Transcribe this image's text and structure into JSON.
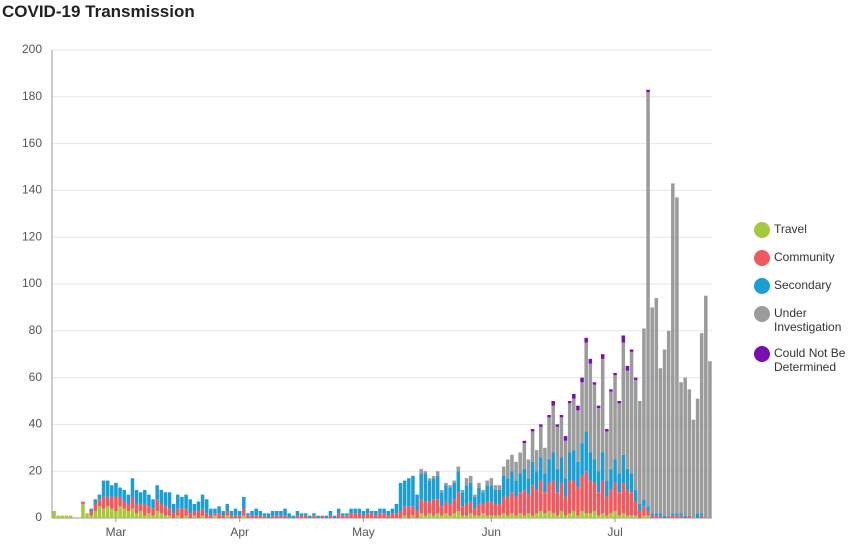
{
  "chart_data": {
    "type": "bar",
    "stacked": true,
    "title": "COVID-19 Transmission",
    "categories": [
      null,
      null,
      null,
      null,
      null,
      null,
      null,
      null,
      null,
      null,
      null,
      null,
      null,
      null,
      null,
      "Mar",
      null,
      null,
      null,
      null,
      null,
      null,
      null,
      null,
      null,
      null,
      null,
      null,
      null,
      null,
      null,
      null,
      null,
      null,
      null,
      null,
      null,
      null,
      null,
      null,
      null,
      null,
      null,
      null,
      null,
      "Apr",
      null,
      null,
      null,
      null,
      null,
      null,
      null,
      null,
      null,
      null,
      null,
      null,
      null,
      null,
      null,
      null,
      null,
      null,
      null,
      null,
      null,
      null,
      null,
      null,
      null,
      null,
      null,
      null,
      null,
      "May",
      null,
      null,
      null,
      null,
      null,
      null,
      null,
      null,
      null,
      null,
      null,
      null,
      null,
      null,
      null,
      null,
      null,
      null,
      null,
      null,
      null,
      null,
      null,
      null,
      null,
      null,
      null,
      null,
      null,
      null,
      "Jun",
      null,
      null,
      null,
      null,
      null,
      null,
      null,
      null,
      null,
      null,
      null,
      null,
      null,
      null,
      null,
      null,
      null,
      null,
      null,
      null,
      null,
      null,
      null,
      null,
      null,
      null,
      null,
      null,
      null,
      "Jul",
      null,
      null,
      null,
      null,
      null,
      null,
      null,
      null,
      null,
      null,
      null,
      null,
      null,
      null,
      null,
      null,
      null,
      null,
      null,
      null,
      null,
      null,
      null
    ],
    "series": [
      {
        "name": "Travel",
        "color": "#a5c93b",
        "values": [
          3,
          1,
          1,
          1,
          1,
          0,
          0,
          6,
          2,
          1,
          3,
          5,
          4,
          5,
          4,
          3,
          5,
          4,
          3,
          4,
          2,
          3,
          1,
          2,
          1,
          3,
          2,
          1,
          1,
          0,
          1,
          0,
          1,
          0,
          1,
          0,
          1,
          0,
          0,
          1,
          0,
          0,
          1,
          0,
          0,
          0,
          1,
          0,
          0,
          0,
          0,
          0,
          0,
          0,
          0,
          0,
          0,
          0,
          0,
          0,
          0,
          0,
          0,
          0,
          0,
          0,
          0,
          0,
          0,
          0,
          0,
          0,
          0,
          0,
          0,
          0,
          0,
          0,
          0,
          0,
          0,
          0,
          0,
          0,
          0,
          1,
          0,
          1,
          0,
          2,
          1,
          2,
          1,
          2,
          1,
          2,
          1,
          2,
          3,
          1,
          1,
          2,
          1,
          1,
          2,
          1,
          1,
          1,
          1,
          2,
          1,
          2,
          1,
          2,
          1,
          2,
          1,
          2,
          3,
          2,
          3,
          2,
          1,
          3,
          1,
          2,
          3,
          1,
          3,
          2,
          2,
          3,
          1,
          2,
          1,
          2,
          3,
          1,
          2,
          1,
          1,
          1,
          0,
          1,
          1,
          0,
          0,
          0,
          0,
          0,
          0,
          0,
          0,
          0,
          0,
          0,
          0,
          0,
          0,
          0
        ]
      },
      {
        "name": "Community",
        "color": "#f05a5e",
        "values": [
          0,
          0,
          0,
          0,
          0,
          0,
          0,
          1,
          0,
          2,
          3,
          3,
          5,
          4,
          5,
          6,
          4,
          3,
          3,
          5,
          4,
          3,
          5,
          3,
          3,
          5,
          4,
          4,
          3,
          2,
          3,
          4,
          3,
          2,
          2,
          3,
          3,
          2,
          1,
          1,
          2,
          1,
          2,
          1,
          1,
          1,
          3,
          1,
          1,
          1,
          1,
          1,
          0,
          1,
          1,
          1,
          1,
          0,
          0,
          1,
          1,
          1,
          0,
          1,
          0,
          1,
          0,
          1,
          0,
          2,
          1,
          1,
          2,
          2,
          2,
          1,
          2,
          2,
          1,
          2,
          2,
          1,
          2,
          2,
          3,
          4,
          5,
          4,
          3,
          6,
          6,
          5,
          7,
          6,
          4,
          5,
          5,
          6,
          8,
          4,
          5,
          5,
          3,
          5,
          4,
          6,
          6,
          5,
          5,
          7,
          8,
          9,
          8,
          9,
          11,
          8,
          13,
          10,
          13,
          9,
          12,
          14,
          10,
          12,
          8,
          14,
          13,
          12,
          15,
          18,
          14,
          12,
          10,
          14,
          8,
          10,
          12,
          10,
          13,
          11,
          10,
          6,
          3,
          4,
          2,
          1,
          1,
          1,
          0,
          1,
          1,
          1,
          1,
          0,
          1,
          0,
          0,
          1,
          0,
          0
        ]
      },
      {
        "name": "Secondary",
        "color": "#1a9fd5",
        "values": [
          0,
          0,
          0,
          0,
          0,
          0,
          0,
          0,
          0,
          1,
          2,
          2,
          7,
          7,
          5,
          6,
          4,
          5,
          4,
          8,
          6,
          5,
          6,
          5,
          4,
          6,
          6,
          6,
          7,
          4,
          6,
          5,
          6,
          6,
          3,
          4,
          6,
          6,
          3,
          2,
          3,
          2,
          3,
          2,
          3,
          2,
          5,
          1,
          2,
          3,
          2,
          1,
          2,
          2,
          2,
          2,
          3,
          2,
          1,
          2,
          1,
          1,
          1,
          1,
          1,
          0,
          1,
          2,
          1,
          2,
          1,
          1,
          2,
          2,
          2,
          2,
          2,
          1,
          2,
          2,
          2,
          2,
          2,
          4,
          12,
          11,
          12,
          13,
          7,
          11,
          12,
          9,
          9,
          10,
          6,
          7,
          7,
          7,
          9,
          6,
          8,
          8,
          5,
          7,
          5,
          7,
          7,
          6,
          6,
          9,
          8,
          9,
          7,
          8,
          9,
          7,
          10,
          8,
          10,
          8,
          10,
          12,
          10,
          11,
          8,
          12,
          13,
          11,
          14,
          17,
          12,
          10,
          9,
          12,
          7,
          9,
          10,
          8,
          12,
          9,
          8,
          5,
          3,
          3,
          2,
          1,
          1,
          1,
          1,
          0,
          1,
          1,
          1,
          1,
          0,
          0,
          2,
          1,
          0,
          0
        ]
      },
      {
        "name": "Under Investigation",
        "color": "#9b9b9b",
        "values": [
          0,
          0,
          0,
          0,
          0,
          0,
          0,
          0,
          0,
          0,
          0,
          0,
          0,
          0,
          0,
          0,
          0,
          0,
          0,
          0,
          0,
          0,
          0,
          0,
          0,
          0,
          0,
          0,
          0,
          0,
          0,
          0,
          0,
          0,
          0,
          0,
          0,
          0,
          0,
          0,
          0,
          0,
          0,
          0,
          0,
          0,
          0,
          0,
          0,
          0,
          0,
          0,
          0,
          0,
          0,
          0,
          0,
          0,
          0,
          0,
          0,
          0,
          0,
          0,
          0,
          0,
          0,
          0,
          0,
          0,
          0,
          0,
          0,
          0,
          0,
          0,
          0,
          0,
          0,
          0,
          0,
          0,
          0,
          0,
          0,
          0,
          0,
          0,
          0,
          2,
          1,
          1,
          1,
          2,
          1,
          1,
          1,
          1,
          2,
          1,
          3,
          3,
          1,
          2,
          1,
          2,
          3,
          2,
          2,
          4,
          8,
          7,
          8,
          9,
          11,
          8,
          13,
          9,
          13,
          11,
          18,
          20,
          18,
          17,
          16,
          21,
          22,
          22,
          26,
          38,
          38,
          32,
          27,
          40,
          21,
          33,
          36,
          30,
          48,
          42,
          52,
          47,
          44,
          73,
          177,
          88,
          92,
          62,
          71,
          79,
          141,
          135,
          56,
          59,
          54,
          42,
          49,
          77,
          95,
          67
        ]
      },
      {
        "name": "Could Not Be Determined",
        "color": "#7a0eb0",
        "values": [
          0,
          0,
          0,
          0,
          0,
          0,
          0,
          0,
          0,
          0,
          0,
          0,
          0,
          0,
          0,
          0,
          0,
          0,
          0,
          0,
          0,
          0,
          0,
          0,
          0,
          0,
          0,
          0,
          0,
          0,
          0,
          0,
          0,
          0,
          0,
          0,
          0,
          0,
          0,
          0,
          0,
          0,
          0,
          0,
          0,
          0,
          0,
          0,
          0,
          0,
          0,
          0,
          0,
          0,
          0,
          0,
          0,
          0,
          0,
          0,
          0,
          0,
          0,
          0,
          0,
          0,
          0,
          0,
          0,
          0,
          0,
          0,
          0,
          0,
          0,
          0,
          0,
          0,
          0,
          0,
          0,
          0,
          0,
          0,
          0,
          0,
          0,
          0,
          0,
          0,
          0,
          0,
          0,
          0,
          0,
          0,
          0,
          0,
          0,
          0,
          0,
          0,
          0,
          0,
          0,
          0,
          0,
          0,
          0,
          0,
          0,
          0,
          0,
          0,
          1,
          0,
          1,
          0,
          1,
          0,
          1,
          2,
          1,
          1,
          2,
          1,
          2,
          2,
          2,
          2,
          2,
          1,
          1,
          2,
          1,
          1,
          1,
          1,
          3,
          2,
          1,
          1,
          0,
          0,
          1,
          0,
          0,
          0,
          0,
          0,
          0,
          0,
          0,
          0,
          0,
          0,
          0,
          0,
          0,
          0
        ]
      }
    ],
    "ylim": [
      0,
      200
    ],
    "yticks": [
      0,
      20,
      40,
      60,
      80,
      100,
      120,
      140,
      160,
      180,
      200
    ],
    "grid": true,
    "legend": "right"
  }
}
